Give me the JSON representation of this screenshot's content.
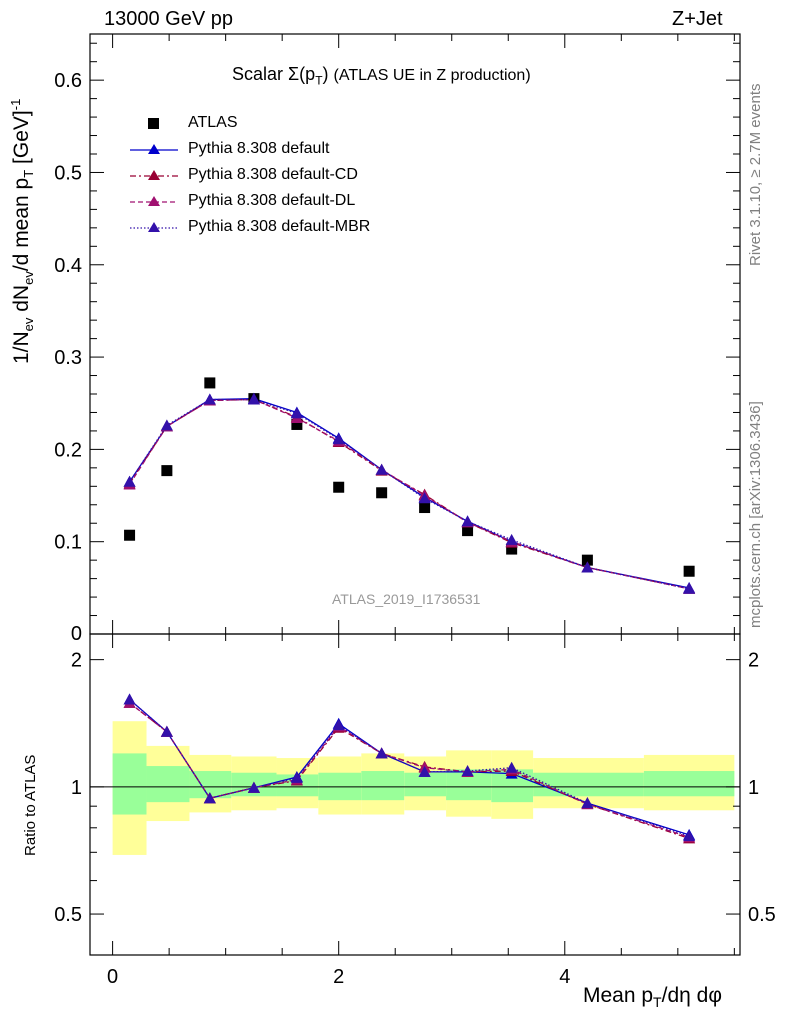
{
  "header": {
    "left": "13000 GeV pp",
    "right": "Z+Jet"
  },
  "title": {
    "prefix": "Scalar",
    "sigma": "Σ(p",
    "sub": "T",
    "close": ")",
    "suffix": "(ATLAS UE in Z production)"
  },
  "side_labels": {
    "rivet": "Rivet 3.1.10, ≥ 2.7M events",
    "mcplots": "mcplots.cern.ch [arXiv:1306.3436]"
  },
  "watermark": "ATLAS_2019_I1736531",
  "axes": {
    "top_ylabel": "1/N_ev dN_ev/d mean p_T [GeV]^-1",
    "bottom_ylabel": "Ratio to ATLAS",
    "xlabel": "Mean p_T/dη dφ"
  },
  "legend": [
    {
      "label": "ATLAS",
      "marker": "square",
      "color": "#000000",
      "dash": "none"
    },
    {
      "label": "Pythia 8.308 default",
      "marker": "triangle",
      "color": "#0000cc",
      "dash": "solid"
    },
    {
      "label": "Pythia 8.308 default-CD",
      "marker": "triangle",
      "color": "#990033",
      "dash": "dashdot"
    },
    {
      "label": "Pythia 8.308 default-DL",
      "marker": "triangle",
      "color": "#a01070",
      "dash": "dashed"
    },
    {
      "label": "Pythia 8.308 default-MBR",
      "marker": "triangle",
      "color": "#3311aa",
      "dash": "dotted"
    }
  ],
  "chart_data": [
    {
      "type": "scatter",
      "panel": "main",
      "xlim": [
        -0.2,
        5.55
      ],
      "ylim": [
        0,
        0.65
      ],
      "yticks": [
        0.1,
        0.2,
        0.3,
        0.4,
        0.5,
        0.6
      ],
      "ytick_labels": [
        "0.1",
        "0.2",
        "0.3",
        "0.4",
        "0.5",
        "0.6"
      ],
      "ylabel_zero": "0",
      "x": [
        0.15,
        0.48,
        0.86,
        1.25,
        1.63,
        2.0,
        2.38,
        2.76,
        3.14,
        3.53,
        4.2,
        5.1
      ],
      "series": [
        {
          "name": "ATLAS",
          "values": [
            0.107,
            0.177,
            0.272,
            0.255,
            0.227,
            0.159,
            0.153,
            0.137,
            0.112,
            0.092,
            0.08,
            0.068
          ]
        },
        {
          "name": "Pythia 8.308 default",
          "values": [
            0.165,
            0.225,
            0.254,
            0.255,
            0.24,
            0.212,
            0.178,
            0.148,
            0.122,
            0.1,
            0.072,
            0.05
          ]
        },
        {
          "name": "Pythia 8.308 default-CD",
          "values": [
            0.163,
            0.225,
            0.253,
            0.254,
            0.235,
            0.208,
            0.177,
            0.151,
            0.121,
            0.099,
            0.072,
            0.049
          ]
        },
        {
          "name": "Pythia 8.308 default-DL",
          "values": [
            0.162,
            0.225,
            0.253,
            0.254,
            0.234,
            0.209,
            0.178,
            0.15,
            0.121,
            0.1,
            0.072,
            0.049
          ]
        },
        {
          "name": "Pythia 8.308 default-MBR",
          "values": [
            0.165,
            0.226,
            0.254,
            0.254,
            0.239,
            0.211,
            0.178,
            0.147,
            0.122,
            0.102,
            0.072,
            0.049
          ]
        }
      ]
    },
    {
      "type": "line",
      "panel": "ratio",
      "xlim": [
        -0.2,
        5.55
      ],
      "ylim_log": [
        0.4,
        2.3
      ],
      "yticks": [
        0.5,
        1,
        2
      ],
      "ytick_labels": [
        "0.5",
        "1",
        "2"
      ],
      "xticks": [
        0,
        2,
        4
      ],
      "xtick_labels": [
        "0",
        "2",
        "4"
      ],
      "bins": [
        [
          0.0,
          0.3
        ],
        [
          0.3,
          0.68
        ],
        [
          0.68,
          1.05
        ],
        [
          1.05,
          1.45
        ],
        [
          1.45,
          1.82
        ],
        [
          1.82,
          2.2
        ],
        [
          2.2,
          2.58
        ],
        [
          2.58,
          2.95
        ],
        [
          2.95,
          3.35
        ],
        [
          3.35,
          3.72
        ],
        [
          3.72,
          4.7
        ],
        [
          4.7,
          5.5
        ]
      ],
      "band_inner": [
        [
          0.86,
          1.2
        ],
        [
          0.92,
          1.12
        ],
        [
          0.94,
          1.09
        ],
        [
          0.95,
          1.08
        ],
        [
          0.95,
          1.07
        ],
        [
          0.93,
          1.08
        ],
        [
          0.93,
          1.09
        ],
        [
          0.95,
          1.08
        ],
        [
          0.93,
          1.1
        ],
        [
          0.92,
          1.1
        ],
        [
          0.95,
          1.08
        ],
        [
          0.95,
          1.09
        ]
      ],
      "band_outer": [
        [
          0.69,
          1.43
        ],
        [
          0.83,
          1.25
        ],
        [
          0.87,
          1.19
        ],
        [
          0.88,
          1.18
        ],
        [
          0.89,
          1.17
        ],
        [
          0.86,
          1.18
        ],
        [
          0.86,
          1.2
        ],
        [
          0.88,
          1.18
        ],
        [
          0.85,
          1.22
        ],
        [
          0.84,
          1.22
        ],
        [
          0.89,
          1.17
        ],
        [
          0.88,
          1.19
        ]
      ],
      "x": [
        0.15,
        0.48,
        0.86,
        1.25,
        1.63,
        2.0,
        2.38,
        2.76,
        3.14,
        3.53,
        4.2,
        5.1
      ],
      "series": [
        {
          "name": "Pythia 8.308 default",
          "values": [
            1.61,
            1.35,
            0.94,
            0.995,
            1.055,
            1.41,
            1.2,
            1.085,
            1.085,
            1.075,
            0.915,
            0.77
          ]
        },
        {
          "name": "Pythia 8.308 default-CD",
          "values": [
            1.58,
            1.35,
            0.94,
            0.995,
            1.035,
            1.38,
            1.2,
            1.115,
            1.085,
            1.09,
            0.91,
            0.755
          ]
        },
        {
          "name": "Pythia 8.308 default-DL",
          "values": [
            1.58,
            1.35,
            0.94,
            0.995,
            1.04,
            1.39,
            1.2,
            1.11,
            1.085,
            1.1,
            0.91,
            0.76
          ]
        },
        {
          "name": "Pythia 8.308 default-MBR",
          "values": [
            1.61,
            1.35,
            0.94,
            0.995,
            1.05,
            1.4,
            1.2,
            1.085,
            1.09,
            1.11,
            0.915,
            0.765
          ]
        }
      ]
    }
  ]
}
